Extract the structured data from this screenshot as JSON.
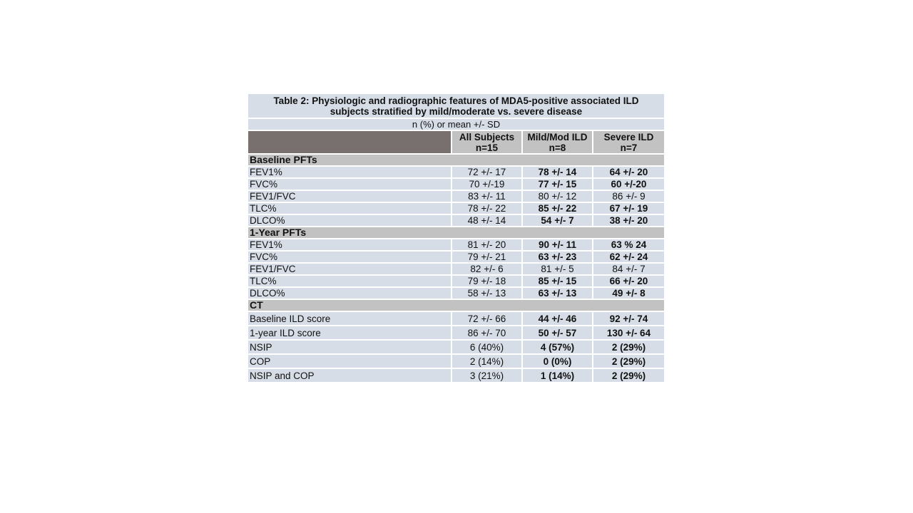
{
  "table": {
    "title_line1": "Table 2: Physiologic and radiographic features of MDA5-positive associated ILD",
    "title_line2": "subjects stratified by mild/moderate vs. severe disease",
    "subtitle": "n (%) or mean +/- SD",
    "header": [
      {
        "line1": "All Subjects",
        "line2": "n=15"
      },
      {
        "line1": "Mild/Mod ILD",
        "line2": "n=8"
      },
      {
        "line1": "Severe ILD",
        "line2": "n=7"
      }
    ],
    "sections": [
      {
        "title": "Baseline PFTs",
        "rows": [
          {
            "label": "FEV1%",
            "all": "72 +/- 17",
            "mild": "78 +/- 14",
            "severe": "64 +/- 20"
          },
          {
            "label": "FVC%",
            "all": "70 +/-19",
            "mild": "77 +/- 15",
            "severe": "60 +/-20"
          },
          {
            "label": "FEV1/FVC",
            "all": "83 +/- 11",
            "mild": "80 +/- 12",
            "severe": "86 +/- 9"
          },
          {
            "label": "TLC%",
            "all": "78 +/- 22",
            "mild": "85 +/- 22",
            "severe": "67 +/- 19"
          },
          {
            "label": "DLCO%",
            "all": "48 +/- 14",
            "mild": "54 +/- 7",
            "severe": "38 +/- 20"
          }
        ]
      },
      {
        "title": "1-Year PFTs",
        "rows": [
          {
            "label": "FEV1%",
            "all": "81 +/- 20",
            "mild": "90 +/- 11",
            "severe": "63 % 24"
          },
          {
            "label": "FVC%",
            "all": "79 +/- 21",
            "mild": "63 +/- 23",
            "severe": "62 +/- 24"
          },
          {
            "label": "FEV1/FVC",
            "all": "82 +/- 6",
            "mild": "81 +/- 5",
            "severe": "84 +/- 7"
          },
          {
            "label": "TLC%",
            "all": "79 +/- 18",
            "mild": "85 +/- 15",
            "severe": "66 +/- 20"
          },
          {
            "label": "DLCO%",
            "all": "58 +/- 13",
            "mild": "63 +/- 13",
            "severe": "49 +/- 8"
          }
        ]
      },
      {
        "title": "CT",
        "rows": [
          {
            "label": "Baseline ILD score",
            "all": "72 +/- 66",
            "mild": "44 +/- 46",
            "severe": "92 +/- 74"
          },
          {
            "label": "1-year ILD score",
            "all": "86 +/- 70",
            "mild": "50 +/- 57",
            "severe": "130 +/- 64"
          },
          {
            "label": "NSIP",
            "all": "6 (40%)",
            "mild": "4 (57%)",
            "severe": "2 (29%)"
          },
          {
            "label": "COP",
            "all": "2 (14%)",
            "mild": "0 (0%)",
            "severe": "2 (29%)"
          },
          {
            "label": "NSIP and COP",
            "all": "3 (21%)",
            "mild": "1 (14%)",
            "severe": "2 (29%)"
          }
        ]
      }
    ]
  }
}
